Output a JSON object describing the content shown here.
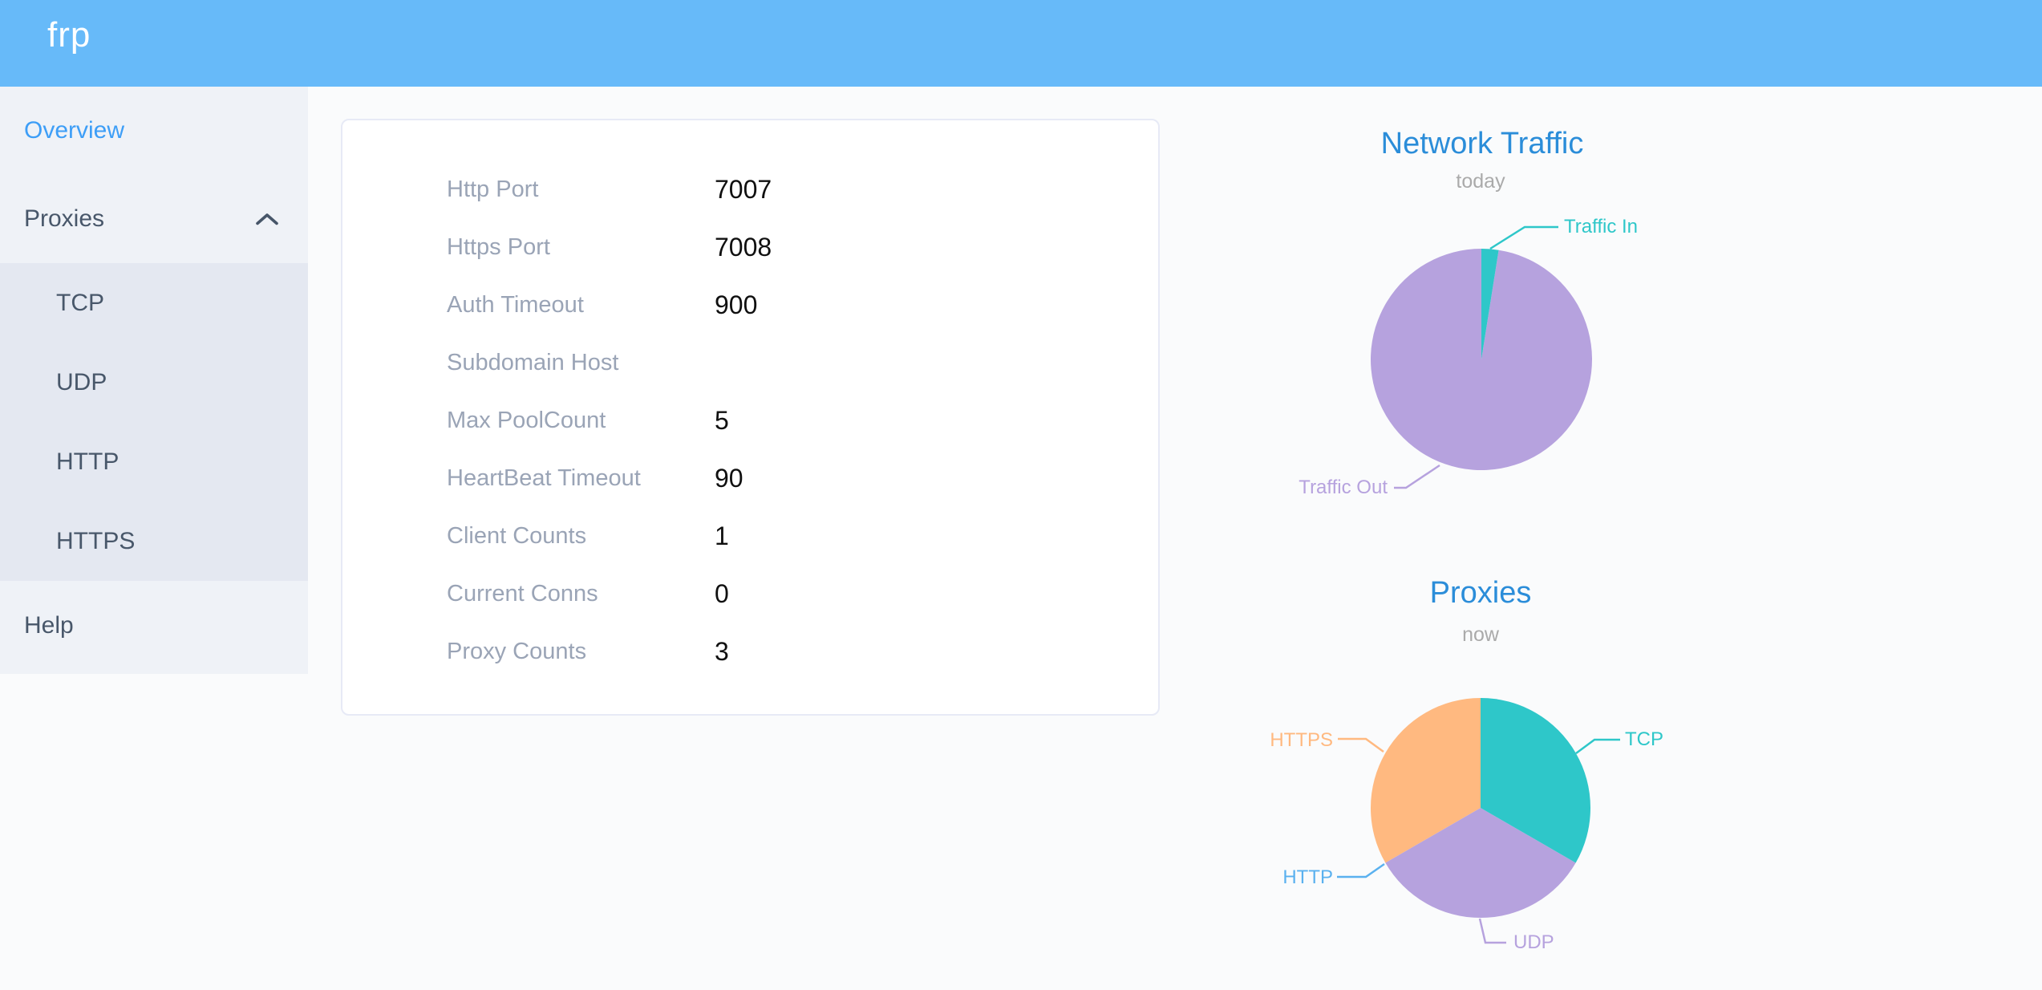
{
  "app": {
    "logo": "frp"
  },
  "theme": {
    "header_bg": "#67baf9",
    "sidebar_bg": "#eff2f7",
    "submenu_bg": "#e4e8f1",
    "menu_text": "#48576a",
    "active_menu_text": "#3d9ef7",
    "chart_title_color": "#2b8dd9",
    "subtitle_color": "#aaaaaa",
    "label_color": "#9aa4b6",
    "value_color": "#101010",
    "teal": "#2ec7c9",
    "purple": "#b6a2de",
    "blue": "#5ab1ef",
    "orange": "#ffb980"
  },
  "sidebar": {
    "overview": {
      "label": "Overview",
      "active": true
    },
    "proxies": {
      "label": "Proxies",
      "expanded": true
    },
    "submenu": [
      {
        "label": "TCP"
      },
      {
        "label": "UDP"
      },
      {
        "label": "HTTP"
      },
      {
        "label": "HTTPS"
      }
    ],
    "help": {
      "label": "Help"
    }
  },
  "server_info": {
    "rows": [
      {
        "label": "Http Port",
        "value": "7007"
      },
      {
        "label": "Https Port",
        "value": "7008"
      },
      {
        "label": "Auth Timeout",
        "value": "900"
      },
      {
        "label": "Subdomain Host",
        "value": ""
      },
      {
        "label": "Max PoolCount",
        "value": "5"
      },
      {
        "label": "HeartBeat Timeout",
        "value": "90"
      },
      {
        "label": "Client Counts",
        "value": "1"
      },
      {
        "label": "Current Conns",
        "value": "0"
      },
      {
        "label": "Proxy Counts",
        "value": "3"
      }
    ]
  },
  "chart_data": [
    {
      "type": "pie",
      "title": "Network Traffic",
      "subtitle": "today",
      "legend_position": "none",
      "labels_position": "outside-with-leader-lines",
      "series": [
        {
          "name": "Traffic In",
          "value": 2.5,
          "unit": "percent (estimated from slice angle ~9deg)",
          "color": "#2ec7c9"
        },
        {
          "name": "Traffic Out",
          "value": 97.5,
          "unit": "percent (estimated from slice angle ~351deg)",
          "color": "#b6a2de"
        }
      ]
    },
    {
      "type": "pie",
      "title": "Proxies",
      "subtitle": "now",
      "legend_position": "none",
      "labels_position": "outside-with-leader-lines",
      "series": [
        {
          "name": "TCP",
          "value": 1,
          "color": "#2ec7c9"
        },
        {
          "name": "UDP",
          "value": 1,
          "color": "#b6a2de"
        },
        {
          "name": "HTTP",
          "value": 0,
          "color": "#5ab1ef"
        },
        {
          "name": "HTTPS",
          "value": 1,
          "color": "#ffb980"
        }
      ]
    }
  ]
}
